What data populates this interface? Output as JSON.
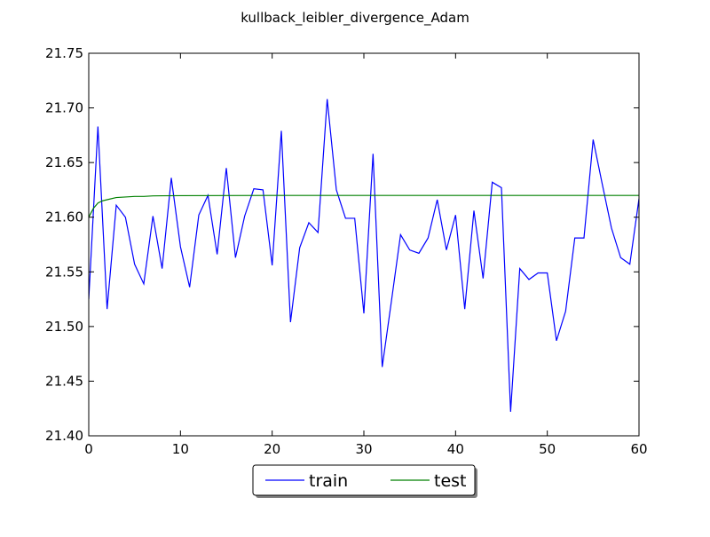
{
  "chart_data": {
    "type": "line",
    "title": "kullback_leibler_divergence_Adam",
    "xlabel": "",
    "ylabel": "",
    "xlim": [
      0,
      60
    ],
    "ylim": [
      21.4,
      21.75
    ],
    "x_ticks": [
      "0",
      "10",
      "20",
      "30",
      "40",
      "50",
      "60"
    ],
    "y_ticks": [
      "21.40",
      "21.45",
      "21.50",
      "21.55",
      "21.60",
      "21.65",
      "21.70",
      "21.75"
    ],
    "grid": false,
    "legend_position": "bottom-center",
    "series": [
      {
        "name": "train",
        "color": "#0000ff",
        "x": [
          0,
          1,
          2,
          3,
          4,
          5,
          6,
          7,
          8,
          9,
          10,
          11,
          12,
          13,
          14,
          15,
          16,
          17,
          18,
          19,
          20,
          21,
          22,
          23,
          24,
          25,
          26,
          27,
          28,
          29,
          30,
          31,
          32,
          33,
          34,
          35,
          36,
          37,
          38,
          39,
          40,
          41,
          42,
          43,
          44,
          45,
          46,
          47,
          48,
          49,
          50,
          51,
          52,
          53,
          54,
          55,
          56,
          57,
          58,
          59,
          60
        ],
        "values": [
          21.525,
          21.683,
          21.516,
          21.611,
          21.6,
          21.557,
          21.539,
          21.601,
          21.553,
          21.636,
          21.573,
          21.536,
          21.602,
          21.62,
          21.566,
          21.645,
          21.563,
          21.601,
          21.626,
          21.625,
          21.556,
          21.679,
          21.504,
          21.572,
          21.595,
          21.586,
          21.708,
          21.625,
          21.599,
          21.599,
          21.512,
          21.658,
          21.463,
          21.523,
          21.584,
          21.57,
          21.567,
          21.581,
          21.616,
          21.57,
          21.602,
          21.516,
          21.606,
          21.544,
          21.632,
          21.627,
          21.422,
          21.553,
          21.543,
          21.549,
          21.549,
          21.487,
          21.514,
          21.581,
          21.581,
          21.671,
          21.63,
          21.59,
          21.563,
          21.557,
          21.617
        ]
      },
      {
        "name": "test",
        "color": "#008000",
        "x": [
          0,
          0.5,
          1,
          1.5,
          2,
          3,
          4,
          5,
          6,
          7,
          8,
          10,
          15,
          20,
          30,
          40,
          50,
          60
        ],
        "values": [
          21.6,
          21.608,
          21.613,
          21.615,
          21.616,
          21.618,
          21.6185,
          21.619,
          21.619,
          21.6195,
          21.6196,
          21.6197,
          21.6198,
          21.6199,
          21.6199,
          21.6199,
          21.6199,
          21.6199
        ]
      }
    ]
  }
}
